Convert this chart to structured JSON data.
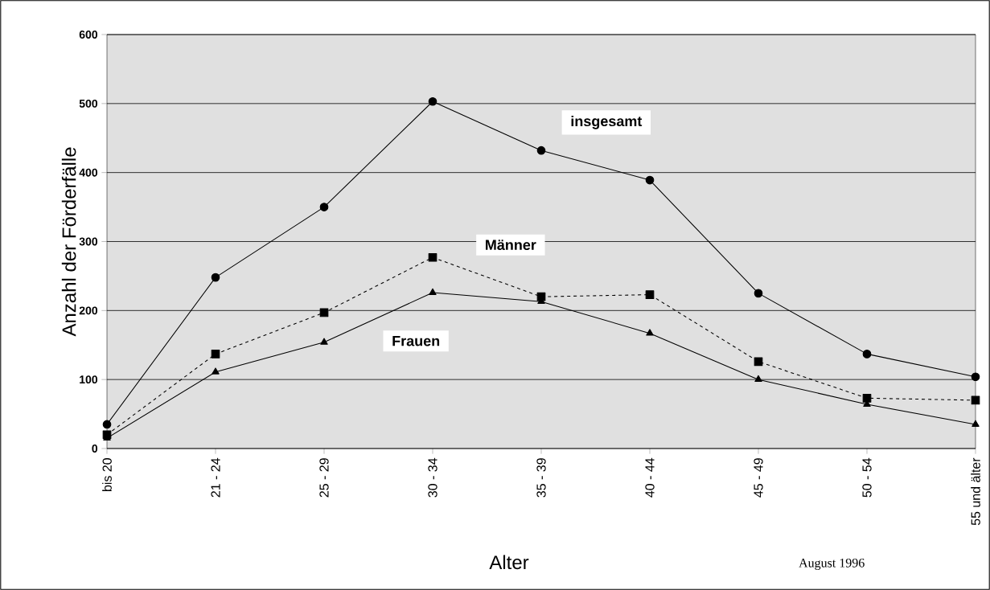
{
  "chart_data": {
    "type": "line",
    "xlabel": "Alter",
    "ylabel": "Anzahl der Förderfälle",
    "annotations": [
      "August 1996"
    ],
    "categories": [
      "bis 20",
      "21 - 24",
      "25 - 29",
      "30 - 34",
      "35 - 39",
      "40 - 44",
      "45 - 49",
      "50 - 54",
      "55 und älter"
    ],
    "ylim": [
      0,
      600
    ],
    "yticks": [
      0,
      100,
      200,
      300,
      400,
      500,
      600
    ],
    "grid": "y",
    "series": [
      {
        "name": "insgesamt",
        "color": "#000000",
        "marker": "circle",
        "line_style": "solid",
        "values": [
          35,
          248,
          350,
          503,
          432,
          389,
          225,
          137,
          104
        ]
      },
      {
        "name": "Männer",
        "color": "#000000",
        "marker": "square",
        "line_style": "dashed",
        "values": [
          20,
          137,
          197,
          277,
          220,
          223,
          126,
          73,
          70
        ]
      },
      {
        "name": "Frauen",
        "color": "#000000",
        "marker": "triangle",
        "line_style": "solid",
        "values": [
          15,
          111,
          154,
          226,
          213,
          167,
          100,
          64,
          35
        ]
      }
    ]
  }
}
